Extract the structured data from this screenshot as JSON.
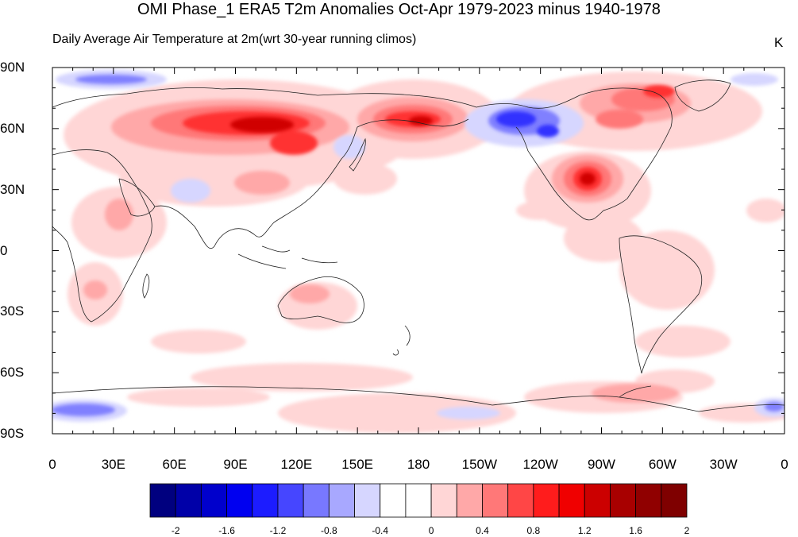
{
  "title": "OMI Phase_1 ERA5 T2m Anomalies Oct-Apr 1979-2023 minus 1940-1978",
  "subtitle": "Daily Average Air Temperature at 2m(wrt 30-year running climos)",
  "units": "K",
  "lat_labels": [
    "90N",
    "60N",
    "30N",
    "0",
    "30S",
    "60S",
    "90S"
  ],
  "lon_labels": [
    "0",
    "30E",
    "60E",
    "90E",
    "120E",
    "150E",
    "180",
    "150W",
    "120W",
    "90W",
    "60W",
    "30W",
    "0"
  ],
  "colorbar": {
    "labels": [
      "-2",
      "-1.6",
      "-1.2",
      "-0.8",
      "-0.4",
      "0",
      "0.4",
      "0.8",
      "1.2",
      "1.6",
      "2"
    ],
    "colors": [
      "#00007f",
      "#0000a8",
      "#0000cc",
      "#0000f0",
      "#1c1cff",
      "#4646ff",
      "#7878ff",
      "#a8a8ff",
      "#d6d6ff",
      "#ffffff",
      "#ffffff",
      "#ffd6d6",
      "#ffa8a8",
      "#ff7878",
      "#ff4646",
      "#ff1c1c",
      "#f00000",
      "#cc0000",
      "#a80000",
      "#900000",
      "#7f0000"
    ]
  }
}
